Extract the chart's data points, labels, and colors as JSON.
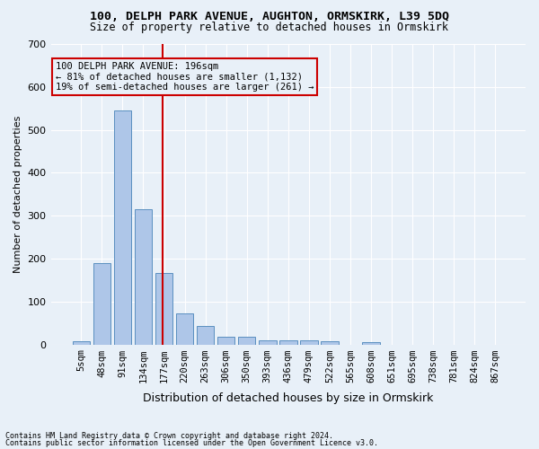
{
  "title1": "100, DELPH PARK AVENUE, AUGHTON, ORMSKIRK, L39 5DQ",
  "title2": "Size of property relative to detached houses in Ormskirk",
  "xlabel": "Distribution of detached houses by size in Ormskirk",
  "ylabel": "Number of detached properties",
  "footer1": "Contains HM Land Registry data © Crown copyright and database right 2024.",
  "footer2": "Contains public sector information licensed under the Open Government Licence v3.0.",
  "bin_labels": [
    "5sqm",
    "48sqm",
    "91sqm",
    "134sqm",
    "177sqm",
    "220sqm",
    "263sqm",
    "306sqm",
    "350sqm",
    "393sqm",
    "436sqm",
    "479sqm",
    "522sqm",
    "565sqm",
    "608sqm",
    "651sqm",
    "695sqm",
    "738sqm",
    "781sqm",
    "824sqm",
    "867sqm"
  ],
  "bar_heights": [
    8,
    190,
    545,
    315,
    167,
    73,
    43,
    18,
    18,
    10,
    10,
    10,
    8,
    0,
    5,
    0,
    0,
    0,
    0,
    0,
    0
  ],
  "bar_color": "#aec6e8",
  "bar_edge_color": "#5a8fc0",
  "vline_x": 4,
  "vline_color": "#cc0000",
  "annotation_text": "100 DELPH PARK AVENUE: 196sqm\n← 81% of detached houses are smaller (1,132)\n19% of semi-detached houses are larger (261) →",
  "annotation_box_color": "#cc0000",
  "ylim": [
    0,
    700
  ],
  "yticks": [
    0,
    100,
    200,
    300,
    400,
    500,
    600,
    700
  ],
  "background_color": "#e8f0f8",
  "grid_color": "#ffffff"
}
